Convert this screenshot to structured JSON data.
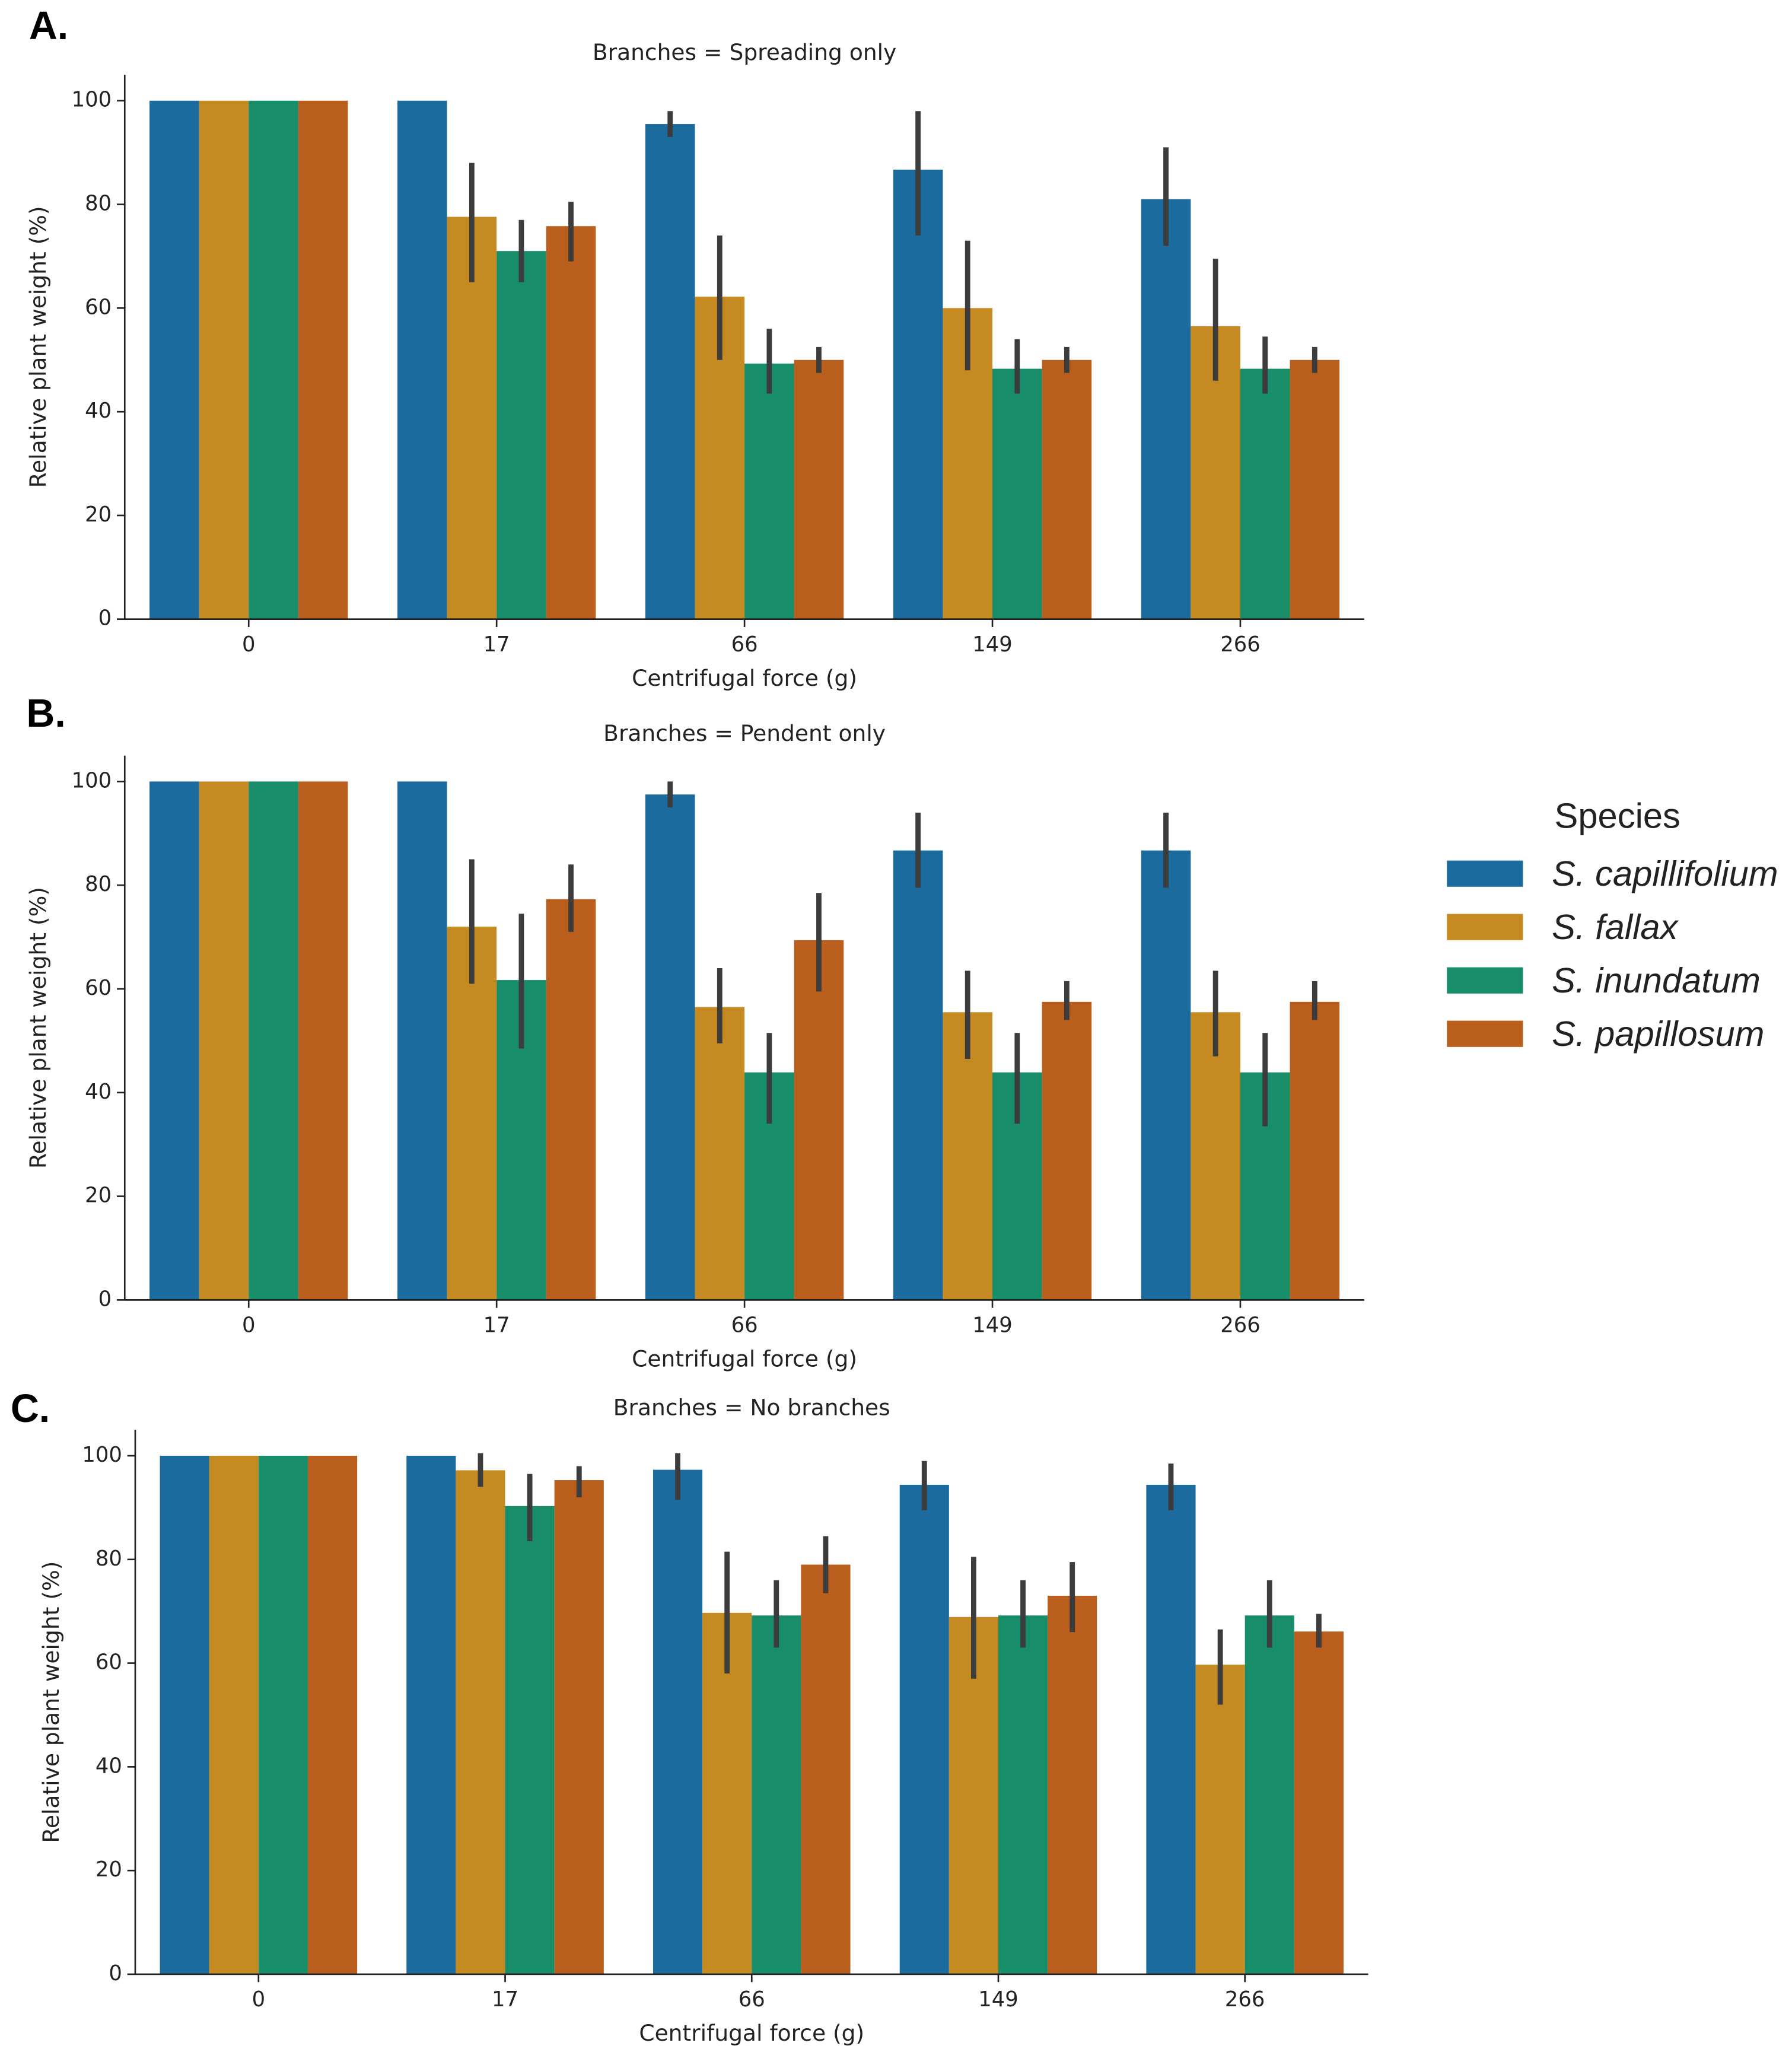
{
  "chart_data": [
    {
      "type": "bar",
      "panel_label": "A.",
      "title": "Branches = Spreading only",
      "xlabel": "Centrifugal force (g)",
      "ylabel": "Relative plant weight (%)",
      "categories": [
        "0",
        "17",
        "66",
        "149",
        "266"
      ],
      "ylim": [
        0,
        105
      ],
      "yticks": [
        0,
        20,
        40,
        60,
        80,
        100
      ],
      "series": [
        {
          "name": "S. capillifolium",
          "color": "#1b6b9e",
          "values": [
            100,
            100,
            95.5,
            86.7,
            81
          ],
          "ci_low": [
            null,
            null,
            93,
            74,
            72
          ],
          "ci_high": [
            null,
            null,
            98,
            98,
            91
          ]
        },
        {
          "name": "S. fallax",
          "color": "#c58a22",
          "values": [
            100,
            77.6,
            62.2,
            60,
            56.5
          ],
          "ci_low": [
            null,
            65,
            50,
            48,
            46
          ],
          "ci_high": [
            null,
            88,
            74,
            73,
            69.5
          ]
        },
        {
          "name": "S. inundatum",
          "color": "#178d6a",
          "values": [
            100,
            71,
            49.3,
            48.3,
            48.3
          ],
          "ci_low": [
            null,
            65,
            43.5,
            43.5,
            43.5
          ],
          "ci_high": [
            null,
            77,
            56,
            54,
            54.5
          ]
        },
        {
          "name": "S. papillosum",
          "color": "#b95e1c",
          "values": [
            100,
            75.8,
            50,
            50,
            50
          ],
          "ci_low": [
            null,
            69,
            47.5,
            47.5,
            47.5
          ],
          "ci_high": [
            null,
            80.5,
            52.5,
            52.5,
            52.5
          ]
        }
      ]
    },
    {
      "type": "bar",
      "panel_label": "B.",
      "title": "Branches = Pendent only",
      "xlabel": "Centrifugal force (g)",
      "ylabel": "Relative plant weight (%)",
      "categories": [
        "0",
        "17",
        "66",
        "149",
        "266"
      ],
      "ylim": [
        0,
        105
      ],
      "yticks": [
        0,
        20,
        40,
        60,
        80,
        100
      ],
      "series": [
        {
          "name": "S. capillifolium",
          "color": "#1b6b9e",
          "values": [
            100,
            100,
            97.5,
            86.7,
            86.7
          ],
          "ci_low": [
            null,
            null,
            95,
            79.5,
            79.5
          ],
          "ci_high": [
            null,
            null,
            100,
            94,
            94
          ]
        },
        {
          "name": "S. fallax",
          "color": "#c58a22",
          "values": [
            100,
            72,
            56.5,
            55.5,
            55.5
          ],
          "ci_low": [
            null,
            61,
            49.5,
            46.5,
            47
          ],
          "ci_high": [
            null,
            85,
            64,
            63.5,
            63.5
          ]
        },
        {
          "name": "S. inundatum",
          "color": "#178d6a",
          "values": [
            100,
            61.7,
            43.9,
            43.9,
            43.9
          ],
          "ci_low": [
            null,
            48.5,
            34,
            34,
            33.5
          ],
          "ci_high": [
            null,
            74.5,
            51.5,
            51.5,
            51.5
          ]
        },
        {
          "name": "S. papillosum",
          "color": "#b95e1c",
          "values": [
            100,
            77.3,
            69.4,
            57.5,
            57.5
          ],
          "ci_low": [
            null,
            71,
            59.5,
            54,
            54
          ],
          "ci_high": [
            null,
            84,
            78.5,
            61.5,
            61.5
          ]
        }
      ]
    },
    {
      "type": "bar",
      "panel_label": "C.",
      "title": "Branches = No branches",
      "xlabel": "Centrifugal force (g)",
      "ylabel": "Relative plant weight (%)",
      "categories": [
        "0",
        "17",
        "66",
        "149",
        "266"
      ],
      "ylim": [
        0,
        105
      ],
      "yticks": [
        0,
        20,
        40,
        60,
        80,
        100
      ],
      "series": [
        {
          "name": "S. capillifolium",
          "color": "#1b6b9e",
          "values": [
            100,
            100,
            97.3,
            94.4,
            94.4
          ],
          "ci_low": [
            null,
            null,
            91.5,
            89.5,
            89.5
          ],
          "ci_high": [
            null,
            null,
            100.5,
            99,
            98.5
          ]
        },
        {
          "name": "S. fallax",
          "color": "#c58a22",
          "values": [
            100,
            97.2,
            69.7,
            68.9,
            59.7
          ],
          "ci_low": [
            null,
            94,
            58,
            57,
            52
          ],
          "ci_high": [
            null,
            100.5,
            81.5,
            80.5,
            66.5
          ]
        },
        {
          "name": "S. inundatum",
          "color": "#178d6a",
          "values": [
            100,
            90.3,
            69.2,
            69.2,
            69.2
          ],
          "ci_low": [
            null,
            83.5,
            63,
            63,
            63
          ],
          "ci_high": [
            null,
            96.5,
            76,
            76,
            76
          ]
        },
        {
          "name": "S. papillosum",
          "color": "#b95e1c",
          "values": [
            100,
            95.3,
            79,
            73,
            66.1
          ],
          "ci_low": [
            null,
            92,
            73.5,
            66,
            63
          ],
          "ci_high": [
            null,
            98,
            84.5,
            79.5,
            69.5
          ]
        }
      ]
    }
  ],
  "legend": {
    "title": "Species"
  }
}
